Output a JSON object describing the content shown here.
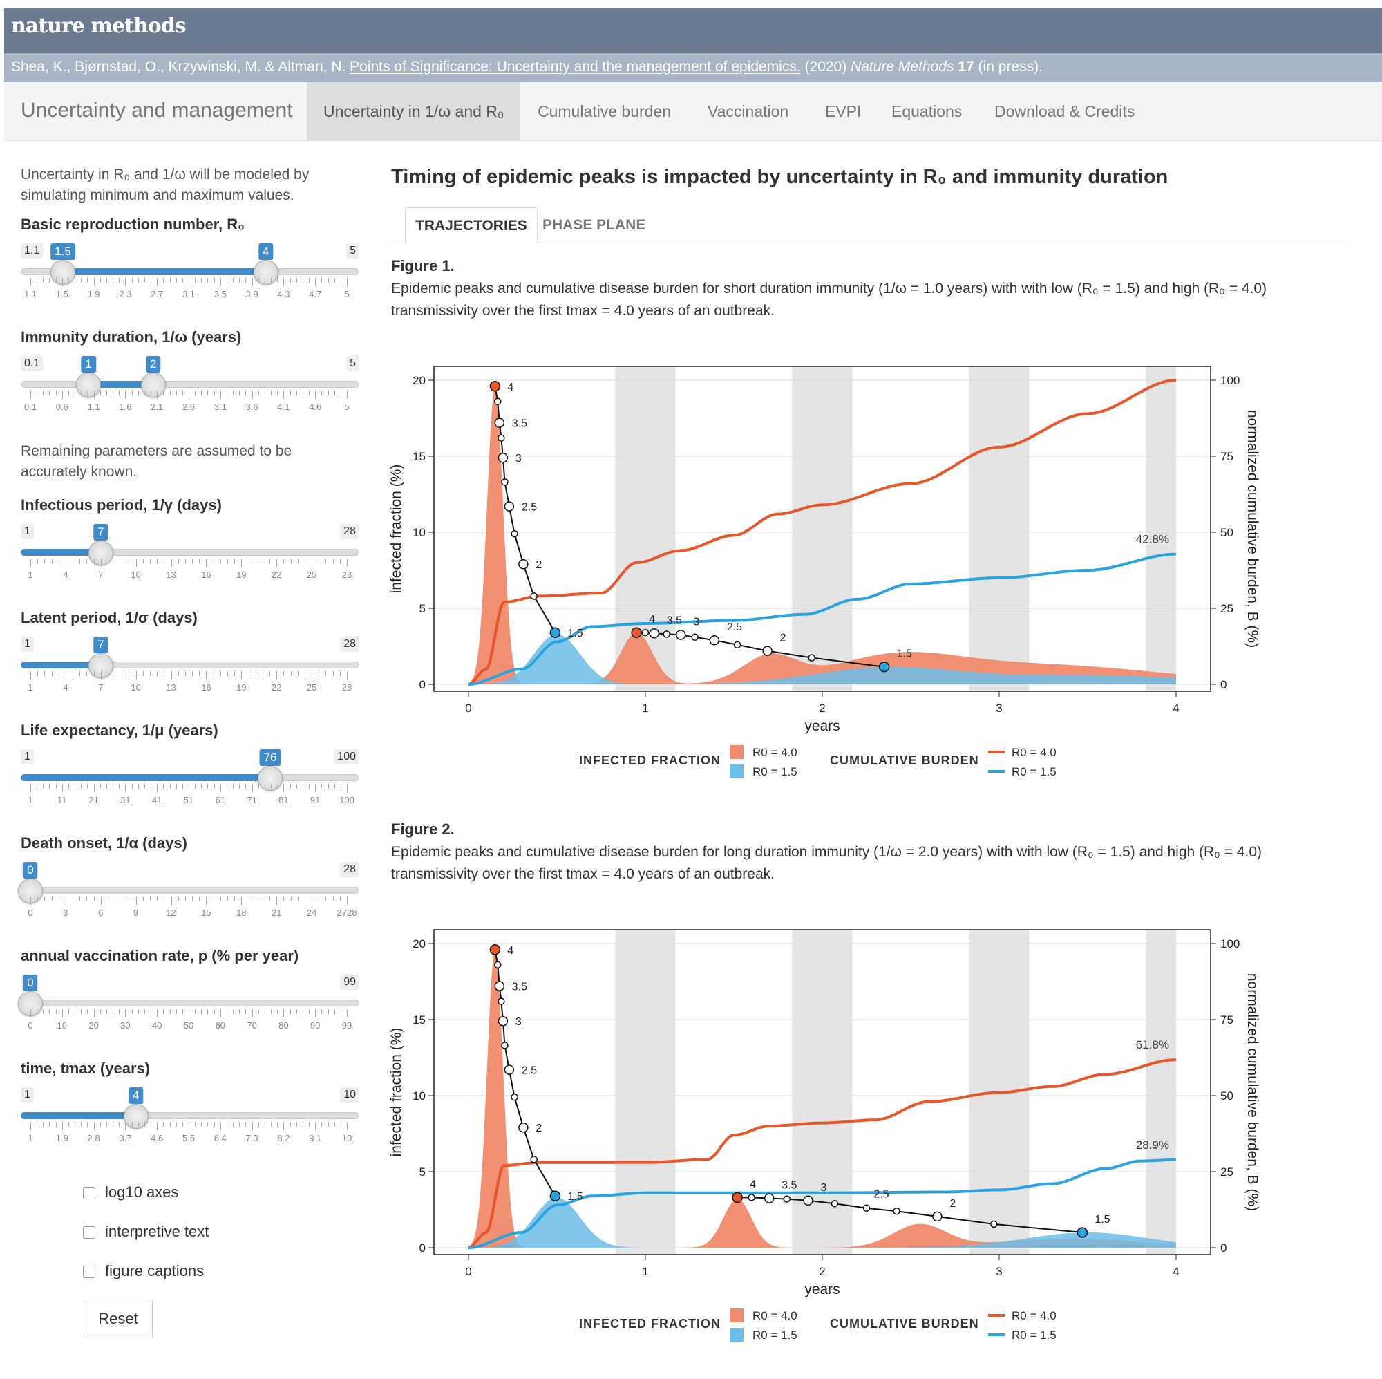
{
  "header": {
    "brand": "nature methods",
    "citation": {
      "authors": "Shea, K., Bjørnstad, O., Krzywinski, M. & Altman, N.",
      "link_text": "Points of Significance: Uncertainty and the management of epidemics.",
      "year": "(2020)",
      "journal": "Nature Methods",
      "volume": "17",
      "status": "(in press)."
    }
  },
  "nav": {
    "title": "Uncertainty and management",
    "tabs": [
      "Uncertainty in 1/ω and R₀",
      "Cumulative burden",
      "Vaccination",
      "EVPI",
      "Equations",
      "Download & Credits"
    ]
  },
  "sidebar": {
    "intro": "Uncertainty in R₀ and 1/ω will be modeled by simulating minimum and maximum values.",
    "remaining": "Remaining parameters are assumed to be accurately known.",
    "sliders": [
      {
        "label": "Basic reproduction number, R₀",
        "min": "1.1",
        "max": "5",
        "lo": "1.5",
        "hi": "4",
        "ticks": [
          "1.1",
          "1.5",
          "1.9",
          "2.3",
          "2.7",
          "3.1",
          "3.5",
          "3.9",
          "4.3",
          "4.7",
          "5"
        ]
      },
      {
        "label": "Immunity duration, 1/ω (years)",
        "min": "0.1",
        "max": "5",
        "lo": "1",
        "hi": "2",
        "ticks": [
          "0.1",
          "0.6",
          "1.1",
          "1.6",
          "2.1",
          "2.6",
          "3.1",
          "3.6",
          "4.1",
          "4.6",
          "5"
        ]
      },
      {
        "label": "Infectious period, 1/γ (days)",
        "min": "1",
        "max": "28",
        "value": "7",
        "ticks": [
          "1",
          "4",
          "7",
          "10",
          "13",
          "16",
          "19",
          "22",
          "25",
          "28"
        ]
      },
      {
        "label": "Latent period, 1/σ (days)",
        "min": "1",
        "max": "28",
        "value": "7",
        "ticks": [
          "1",
          "4",
          "7",
          "10",
          "13",
          "16",
          "19",
          "22",
          "25",
          "28"
        ]
      },
      {
        "label": "Life expectancy, 1/μ (years)",
        "min": "1",
        "max": "100",
        "value": "76",
        "ticks": [
          "1",
          "11",
          "21",
          "31",
          "41",
          "51",
          "61",
          "71",
          "81",
          "91",
          "100"
        ]
      },
      {
        "label": "Death onset, 1/α (days)",
        "min": "0",
        "max": "28",
        "value": "0",
        "ticks": [
          "0",
          "3",
          "6",
          "9",
          "12",
          "15",
          "18",
          "21",
          "24",
          "2728"
        ]
      },
      {
        "label": "annual vaccination rate, p (% per year)",
        "min": "0",
        "max": "99",
        "value": "0",
        "ticks": [
          "0",
          "10",
          "20",
          "30",
          "40",
          "50",
          "60",
          "70",
          "80",
          "90",
          "99"
        ]
      },
      {
        "label": "time, tmax (years)",
        "min": "1",
        "max": "10",
        "value": "4",
        "ticks": [
          "1",
          "1.9",
          "2.8",
          "3.7",
          "4.6",
          "5.5",
          "6.4",
          "7.3",
          "8.2",
          "9.1",
          "10"
        ]
      }
    ],
    "checkboxes": [
      "log10 axes",
      "interpretive text",
      "figure captions"
    ],
    "reset": "Reset"
  },
  "main": {
    "heading": "Timing of epidemic peaks is impacted by uncertainty in R₀ and immunity duration",
    "subtabs": [
      "TRAJECTORIES",
      "PHASE PLANE"
    ],
    "figures": [
      {
        "label": "Figure 1.",
        "caption": "Epidemic peaks and cumulative disease burden for short duration immunity (1/ω = 1.0 years) with with low (R₀ = 1.5) and high (R₀ = 4.0) transmissivity over the first tmax = 4.0 years of an outbreak."
      },
      {
        "label": "Figure 2.",
        "caption": "Epidemic peaks and cumulative disease burden for long duration immunity (1/ω = 2.0 years) with with low (R₀ = 1.5) and high (R₀ = 4.0) transmissivity over the first tmax = 4.0 years of an outbreak."
      }
    ]
  },
  "colors": {
    "high": "#e8562a",
    "low": "#2aa4e0",
    "high_fill": "#f08a6c",
    "low_fill": "#6cbde8",
    "accent": "#428bca"
  },
  "chart_data": [
    {
      "type": "area",
      "xlabel": "years",
      "ylabel": "infected fraction (%)",
      "y2label": "normalized cumulative burden, B (%)",
      "xlim": [
        0,
        4
      ],
      "ylim": [
        0,
        20
      ],
      "y2lim": [
        0,
        100
      ],
      "xticks": [
        "0",
        "1",
        "2",
        "3",
        "4"
      ],
      "yticks": [
        "0",
        "5",
        "10",
        "15",
        "20"
      ],
      "y2ticks": [
        "0",
        "25",
        "50",
        "75",
        "100"
      ],
      "legend": {
        "infected_title": "INFECTED FRACTION",
        "burden_title": "CUMULATIVE BURDEN",
        "high": "R0 = 4.0",
        "low": "R0 = 1.5"
      },
      "infected_high": {
        "peaks": [
          [
            0.15,
            19.6,
            0.045
          ],
          [
            0.95,
            3.4,
            0.09
          ],
          [
            1.7,
            1.7,
            0.15
          ],
          [
            2.4,
            1.4,
            0.35
          ],
          [
            3.2,
            1.3,
            0.7
          ]
        ],
        "base": 1.0
      },
      "infected_low": {
        "peaks": [
          [
            0.5,
            3.3,
            0.13
          ],
          [
            2.35,
            1.05,
            0.4
          ],
          [
            3.5,
            0.6,
            0.6
          ]
        ],
        "base": 0.5
      },
      "burden_high": [
        [
          0,
          0
        ],
        [
          0.1,
          5
        ],
        [
          0.2,
          27
        ],
        [
          0.4,
          29
        ],
        [
          0.75,
          30
        ],
        [
          0.95,
          40
        ],
        [
          1.2,
          44
        ],
        [
          1.5,
          49
        ],
        [
          1.75,
          56
        ],
        [
          2.0,
          59
        ],
        [
          2.5,
          66
        ],
        [
          3.0,
          78
        ],
        [
          3.5,
          89
        ],
        [
          4.0,
          100
        ]
      ],
      "burden_low": [
        [
          0,
          0
        ],
        [
          0.3,
          5
        ],
        [
          0.5,
          14
        ],
        [
          0.7,
          19
        ],
        [
          1.0,
          20
        ],
        [
          1.5,
          21
        ],
        [
          1.9,
          23
        ],
        [
          2.2,
          28
        ],
        [
          2.5,
          33
        ],
        [
          3.0,
          35
        ],
        [
          3.5,
          37.5
        ],
        [
          4.0,
          42.8
        ]
      ],
      "end_labels": {
        "high": "",
        "low": "42.8%"
      },
      "phase_high": {
        "points": [
          [
            0.15,
            19.6
          ],
          [
            0.165,
            18.6
          ],
          [
            0.175,
            17.2
          ],
          [
            0.185,
            16.2
          ],
          [
            0.195,
            14.9
          ],
          [
            0.205,
            13.3
          ],
          [
            0.23,
            11.7
          ],
          [
            0.26,
            9.9
          ],
          [
            0.31,
            7.9
          ],
          [
            0.37,
            5.8
          ],
          [
            0.49,
            3.4
          ]
        ],
        "labels": [
          [
            "4",
            0.15,
            19.6
          ],
          [
            "3.5",
            0.175,
            17.2
          ],
          [
            "3",
            0.195,
            14.9
          ],
          [
            "2.5",
            0.23,
            11.7
          ],
          [
            "2",
            0.31,
            7.9
          ],
          [
            "1.5",
            0.49,
            3.4
          ]
        ]
      },
      "phase_low": {
        "points": [
          [
            0.95,
            3.4
          ],
          [
            1.0,
            3.4
          ],
          [
            1.05,
            3.35
          ],
          [
            1.12,
            3.3
          ],
          [
            1.2,
            3.25
          ],
          [
            1.28,
            3.1
          ],
          [
            1.39,
            2.9
          ],
          [
            1.52,
            2.6
          ],
          [
            1.69,
            2.2
          ],
          [
            1.94,
            1.75
          ],
          [
            2.35,
            1.15
          ]
        ],
        "labels": [
          [
            "4",
            0.95,
            3.4
          ],
          [
            "3.5",
            1.05,
            3.35
          ],
          [
            "3",
            1.2,
            3.25
          ],
          [
            "2.5",
            1.39,
            2.9
          ],
          [
            "2",
            1.69,
            2.2
          ],
          [
            "1.5",
            2.35,
            1.15
          ]
        ]
      },
      "shade": [
        [
          0.83,
          1.17
        ],
        [
          1.83,
          2.17
        ],
        [
          2.83,
          3.17
        ],
        [
          3.83,
          4.0
        ]
      ]
    },
    {
      "type": "area",
      "xlabel": "years",
      "ylabel": "infected fraction (%)",
      "y2label": "normalized cumulative burden, B (%)",
      "xlim": [
        0,
        4
      ],
      "ylim": [
        0,
        20
      ],
      "y2lim": [
        0,
        100
      ],
      "xticks": [
        "0",
        "1",
        "2",
        "3",
        "4"
      ],
      "yticks": [
        "0",
        "5",
        "10",
        "15",
        "20"
      ],
      "y2ticks": [
        "0",
        "25",
        "50",
        "75",
        "100"
      ],
      "legend": {
        "infected_title": "INFECTED FRACTION",
        "burden_title": "CUMULATIVE BURDEN",
        "high": "R0 = 4.0",
        "low": "R0 = 1.5"
      },
      "infected_high": {
        "peaks": [
          [
            0.15,
            19.6,
            0.045
          ],
          [
            1.52,
            3.2,
            0.08
          ],
          [
            2.55,
            1.5,
            0.15
          ],
          [
            3.4,
            0.6,
            0.4
          ]
        ],
        "base": 0.3
      },
      "infected_low": {
        "peaks": [
          [
            0.5,
            3.3,
            0.13
          ],
          [
            3.5,
            1.0,
            0.35
          ]
        ],
        "base": 0.2
      },
      "burden_high": [
        [
          0,
          0
        ],
        [
          0.1,
          5
        ],
        [
          0.2,
          27
        ],
        [
          0.4,
          28
        ],
        [
          1.0,
          28
        ],
        [
          1.35,
          29
        ],
        [
          1.5,
          37
        ],
        [
          1.7,
          40
        ],
        [
          2.0,
          41
        ],
        [
          2.3,
          42
        ],
        [
          2.6,
          48
        ],
        [
          3.0,
          51
        ],
        [
          3.3,
          53
        ],
        [
          3.6,
          57
        ],
        [
          4.0,
          61.8
        ]
      ],
      "burden_low": [
        [
          0,
          0
        ],
        [
          0.3,
          5
        ],
        [
          0.5,
          14
        ],
        [
          0.7,
          17
        ],
        [
          1.0,
          18
        ],
        [
          2.0,
          18
        ],
        [
          2.7,
          18.3
        ],
        [
          3.0,
          19
        ],
        [
          3.3,
          21
        ],
        [
          3.6,
          26
        ],
        [
          3.8,
          28.5
        ],
        [
          4.0,
          28.9
        ]
      ],
      "end_labels": {
        "high": "61.8%",
        "low": "28.9%"
      },
      "phase_high": {
        "points": [
          [
            0.15,
            19.6
          ],
          [
            0.165,
            18.6
          ],
          [
            0.175,
            17.2
          ],
          [
            0.185,
            16.2
          ],
          [
            0.195,
            14.9
          ],
          [
            0.205,
            13.3
          ],
          [
            0.23,
            11.7
          ],
          [
            0.26,
            9.9
          ],
          [
            0.31,
            7.9
          ],
          [
            0.37,
            5.8
          ],
          [
            0.49,
            3.4
          ]
        ],
        "labels": [
          [
            "4",
            0.15,
            19.6
          ],
          [
            "3.5",
            0.175,
            17.2
          ],
          [
            "3",
            0.195,
            14.9
          ],
          [
            "2.5",
            0.23,
            11.7
          ],
          [
            "2",
            0.31,
            7.9
          ],
          [
            "1.5",
            0.49,
            3.4
          ]
        ]
      },
      "phase_low": {
        "points": [
          [
            1.52,
            3.3
          ],
          [
            1.6,
            3.3
          ],
          [
            1.7,
            3.25
          ],
          [
            1.8,
            3.2
          ],
          [
            1.92,
            3.1
          ],
          [
            2.07,
            2.9
          ],
          [
            2.25,
            2.6
          ],
          [
            2.42,
            2.4
          ],
          [
            2.65,
            2.05
          ],
          [
            2.97,
            1.55
          ],
          [
            3.47,
            1.0
          ]
        ],
        "labels": [
          [
            "4",
            1.52,
            3.3
          ],
          [
            "3.5",
            1.7,
            3.25
          ],
          [
            "3",
            1.92,
            3.1
          ],
          [
            "2.5",
            2.22,
            2.65
          ],
          [
            "2",
            2.65,
            2.05
          ],
          [
            "1.5",
            3.47,
            1.0
          ]
        ]
      },
      "shade": [
        [
          0.83,
          1.17
        ],
        [
          1.83,
          2.17
        ],
        [
          2.83,
          3.17
        ],
        [
          3.83,
          4.0
        ]
      ]
    }
  ]
}
